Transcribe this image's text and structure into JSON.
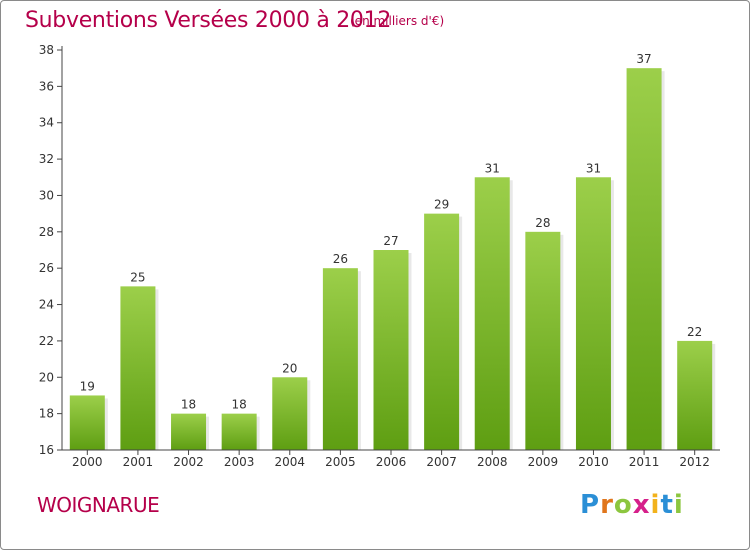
{
  "header": {
    "title": "Subventions Versées 2000 à 2012",
    "subtitle": "(en milliers d'€)"
  },
  "footer": {
    "commune": "WOIGNARUE",
    "logo_text": "Proxiti"
  },
  "colors": {
    "title": "#b5004a",
    "bar_top": "#9ccf4a",
    "bar_bottom": "#5e9e12",
    "axis": "#444444"
  },
  "chart_data": {
    "type": "bar",
    "title": "Subventions Versées 2000 à 2012",
    "subtitle": "(en milliers d'€)",
    "categories": [
      "2000",
      "2001",
      "2002",
      "2003",
      "2004",
      "2005",
      "2006",
      "2007",
      "2008",
      "2009",
      "2010",
      "2011",
      "2012"
    ],
    "values": [
      19,
      25,
      18,
      18,
      20,
      26,
      27,
      29,
      31,
      28,
      31,
      37,
      22
    ],
    "ylim": [
      16,
      38
    ],
    "yticks": [
      16,
      18,
      20,
      22,
      24,
      26,
      28,
      30,
      32,
      34,
      36,
      38
    ],
    "data_labels": true,
    "grid": false,
    "legend": "none"
  }
}
